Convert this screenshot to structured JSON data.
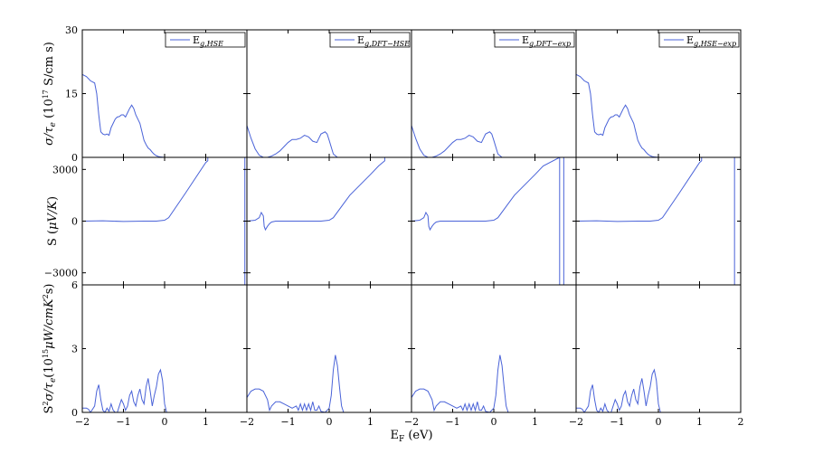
{
  "xlabel": "E_F (eV)",
  "chart_data": {
    "type": "line",
    "layout": "grid 3 rows x 4 columns, shared x axis",
    "xlim": [
      -2,
      2
    ],
    "xticks": [
      -2,
      -1,
      0,
      1,
      2
    ],
    "colors": {
      "line": "#4a63d8",
      "axes": "#000000"
    },
    "columns": [
      {
        "legend": "E_g,HSE",
        "legend_main": "E",
        "legend_sub": "g,HSE",
        "legend_position": "top-right"
      },
      {
        "legend": "E_g,DFT-HSE",
        "legend_main": "E",
        "legend_sub": "g,DFT−HSE",
        "legend_position": "top-right"
      },
      {
        "legend": "E_g,DFT-exp",
        "legend_main": "E",
        "legend_sub": "g,DFT−exp",
        "legend_position": "top-right"
      },
      {
        "legend": "E_g,HSE-exp",
        "legend_main": "E",
        "legend_sub": "g,HSE−exp",
        "legend_position": "top-right"
      }
    ],
    "rows": [
      {
        "ylabel": "σ/τ_e (10^17 S/cm s)",
        "ylim": [
          0,
          30
        ],
        "yticks": [
          0,
          15,
          30
        ],
        "series": [
          {
            "x": [
              -2,
              -1.9,
              -1.8,
              -1.7,
              -1.65,
              -1.6,
              -1.55,
              -1.5,
              -1.45,
              -1.4,
              -1.35,
              -1.3,
              -1.25,
              -1.2,
              -1.15,
              -1.1,
              -1.05,
              -1.0,
              -0.95,
              -0.9,
              -0.85,
              -0.8,
              -0.75,
              -0.7,
              -0.65,
              -0.6,
              -0.55,
              -0.5,
              -0.45,
              -0.4,
              -0.35,
              -0.3,
              -0.25,
              -0.2,
              -0.15,
              -0.1,
              -0.05,
              0,
              0.05,
              0.1,
              1.0,
              1.5,
              2.0
            ],
            "y": [
              19.5,
              19,
              18,
              17.5,
              15,
              10,
              6,
              5.5,
              5.3,
              5.5,
              5.2,
              7,
              8,
              9,
              9.5,
              9.6,
              10,
              10,
              9.5,
              10.5,
              11.5,
              12.3,
              11.5,
              10,
              9,
              8,
              6,
              4,
              3,
              2.2,
              1.8,
              1.2,
              0.7,
              0.4,
              0.2,
              0.1,
              0.05,
              0,
              0,
              0,
              0,
              0,
              0
            ]
          },
          {
            "x": [
              -2,
              -1.9,
              -1.8,
              -1.7,
              -1.6,
              -1.5,
              -1.4,
              -1.3,
              -1.2,
              -1.1,
              -1.0,
              -0.9,
              -0.8,
              -0.7,
              -0.6,
              -0.5,
              -0.4,
              -0.3,
              -0.2,
              -0.1,
              -0.05,
              0,
              0.1,
              0.2,
              1.0,
              1.5,
              2.0
            ],
            "y": [
              7.5,
              4.5,
              2,
              0.5,
              0,
              0,
              0.3,
              0.8,
              1.5,
              2.5,
              3.5,
              4.2,
              4.2,
              4.5,
              5.2,
              4.8,
              3.8,
              3.5,
              5.5,
              6,
              5.5,
              4,
              0.8,
              0,
              0,
              0,
              0
            ]
          },
          {
            "x": [
              -2,
              -1.9,
              -1.8,
              -1.7,
              -1.6,
              -1.5,
              -1.4,
              -1.3,
              -1.2,
              -1.1,
              -1.0,
              -0.9,
              -0.8,
              -0.7,
              -0.6,
              -0.5,
              -0.4,
              -0.3,
              -0.2,
              -0.1,
              -0.05,
              0,
              0.1,
              0.2,
              1.0,
              1.5,
              2.0
            ],
            "y": [
              7.5,
              4.5,
              2,
              0.5,
              0,
              0,
              0.3,
              0.8,
              1.5,
              2.5,
              3.5,
              4.2,
              4.2,
              4.5,
              5.2,
              4.8,
              3.8,
              3.5,
              5.5,
              6,
              5.5,
              4,
              0.8,
              0,
              0,
              0,
              0
            ]
          },
          {
            "x": [
              -2,
              -1.9,
              -1.8,
              -1.7,
              -1.65,
              -1.6,
              -1.55,
              -1.5,
              -1.45,
              -1.4,
              -1.35,
              -1.3,
              -1.25,
              -1.2,
              -1.15,
              -1.1,
              -1.05,
              -1.0,
              -0.95,
              -0.9,
              -0.85,
              -0.8,
              -0.75,
              -0.7,
              -0.65,
              -0.6,
              -0.55,
              -0.5,
              -0.45,
              -0.4,
              -0.35,
              -0.3,
              -0.25,
              -0.2,
              -0.15,
              -0.1,
              -0.05,
              0,
              0.05,
              0.1,
              1.0,
              1.5,
              2.0
            ],
            "y": [
              19.5,
              19,
              18,
              17.5,
              15,
              10,
              6,
              5.5,
              5.3,
              5.5,
              5.2,
              7,
              8,
              9,
              9.5,
              9.6,
              10,
              10,
              9.5,
              10.5,
              11.5,
              12.3,
              11.5,
              10,
              9,
              8,
              6,
              4,
              3,
              2.2,
              1.8,
              1.2,
              0.7,
              0.4,
              0.2,
              0.1,
              0.05,
              0,
              0,
              0,
              0,
              0,
              0
            ]
          }
        ]
      },
      {
        "ylabel": "S (μV/K)",
        "ylim": [
          -3700,
          3700
        ],
        "yticks": [
          -3000,
          0,
          3000
        ],
        "series": [
          {
            "x": [
              -2,
              -1.5,
              -1.0,
              -0.5,
              -0.2,
              0,
              0.1,
              0.5,
              1.0,
              1.05,
              1.05,
              1.95,
              1.95
            ],
            "y": [
              0,
              20,
              -20,
              0,
              0,
              50,
              200,
              1600,
              3400,
              3500,
              3700,
              3700,
              -3700
            ]
          },
          {
            "x": [
              -2,
              -1.8,
              -1.7,
              -1.65,
              -1.6,
              -1.58,
              -1.55,
              -1.5,
              -1.45,
              -1.4,
              -1.3,
              -1.2,
              -1.0,
              -0.8,
              -0.6,
              -0.4,
              -0.2,
              0,
              0.1,
              0.5,
              1.0,
              1.2,
              1.35,
              1.35,
              2.0
            ],
            "y": [
              0,
              50,
              200,
              500,
              300,
              -300,
              -500,
              -300,
              -150,
              -50,
              0,
              0,
              0,
              0,
              0,
              0,
              0,
              50,
              200,
              1500,
              2700,
              3200,
              3500,
              3700,
              3700
            ]
          },
          {
            "x": [
              -2,
              -1.8,
              -1.7,
              -1.65,
              -1.6,
              -1.58,
              -1.55,
              -1.5,
              -1.45,
              -1.4,
              -1.3,
              -1.2,
              -1.0,
              -0.8,
              -0.6,
              -0.4,
              -0.2,
              0,
              0.1,
              0.5,
              1.0,
              1.2,
              1.6,
              1.6,
              1.7,
              1.7
            ],
            "y": [
              0,
              50,
              200,
              500,
              300,
              -300,
              -500,
              -300,
              -150,
              -50,
              0,
              0,
              0,
              0,
              0,
              0,
              0,
              50,
              200,
              1500,
              2700,
              3200,
              3700,
              -3700,
              -3700,
              3700
            ]
          },
          {
            "x": [
              -2,
              -1.5,
              -1.0,
              -0.5,
              -0.2,
              0,
              0.1,
              0.5,
              1.0,
              1.05,
              1.05,
              1.85,
              1.85
            ],
            "y": [
              0,
              20,
              -20,
              0,
              0,
              50,
              200,
              1600,
              3400,
              3500,
              3700,
              3700,
              -3700
            ]
          }
        ]
      },
      {
        "ylabel": "S^2σ/τ_e (10^15 μW/cmK^2 s)",
        "ylim": [
          0,
          6
        ],
        "yticks": [
          0,
          3,
          6
        ],
        "series": [
          {
            "x": [
              -2,
              -1.9,
              -1.85,
              -1.8,
              -1.7,
              -1.65,
              -1.6,
              -1.55,
              -1.5,
              -1.45,
              -1.4,
              -1.35,
              -1.3,
              -1.25,
              -1.2,
              -1.15,
              -1.1,
              -1.05,
              -1.0,
              -0.95,
              -0.9,
              -0.85,
              -0.8,
              -0.75,
              -0.7,
              -0.65,
              -0.6,
              -0.55,
              -0.5,
              -0.45,
              -0.4,
              -0.35,
              -0.3,
              -0.25,
              -0.2,
              -0.15,
              -0.1,
              -0.05,
              0,
              0.05,
              0.1,
              1.0,
              1.5,
              2.0
            ],
            "y": [
              0.2,
              0.2,
              0.15,
              0,
              0.3,
              1.0,
              1.3,
              0.6,
              0.1,
              0,
              0.2,
              0.05,
              0.4,
              0.1,
              0,
              0,
              0.3,
              0.6,
              0.4,
              0.1,
              0.3,
              0.8,
              1.0,
              0.5,
              0.3,
              0.8,
              1.1,
              0.6,
              0.4,
              1.2,
              1.6,
              1.0,
              0.3,
              0.8,
              1.2,
              1.8,
              2.0,
              1.5,
              0.4,
              0,
              0,
              0,
              0,
              0
            ]
          },
          {
            "x": [
              -2,
              -1.9,
              -1.8,
              -1.7,
              -1.6,
              -1.5,
              -1.45,
              -1.4,
              -1.3,
              -1.2,
              -1.1,
              -1.0,
              -0.9,
              -0.8,
              -0.75,
              -0.7,
              -0.65,
              -0.6,
              -0.55,
              -0.5,
              -0.45,
              -0.4,
              -0.35,
              -0.3,
              -0.25,
              -0.2,
              -0.1,
              0,
              0.05,
              0.1,
              0.15,
              0.2,
              0.25,
              0.3,
              0.35,
              0.4,
              1.0,
              2.0
            ],
            "y": [
              0.7,
              1.0,
              1.1,
              1.1,
              1.0,
              0.6,
              0.1,
              0.3,
              0.5,
              0.5,
              0.4,
              0.3,
              0.2,
              0.3,
              0.1,
              0.4,
              0.1,
              0.4,
              0.1,
              0.4,
              0.1,
              0.5,
              0.1,
              0.1,
              0.3,
              0.05,
              0,
              0.2,
              0.8,
              2.0,
              2.7,
              2.2,
              1.2,
              0.3,
              0,
              0,
              0,
              0
            ]
          },
          {
            "x": [
              -2,
              -1.9,
              -1.8,
              -1.7,
              -1.6,
              -1.5,
              -1.45,
              -1.4,
              -1.3,
              -1.2,
              -1.1,
              -1.0,
              -0.9,
              -0.8,
              -0.75,
              -0.7,
              -0.65,
              -0.6,
              -0.55,
              -0.5,
              -0.45,
              -0.4,
              -0.35,
              -0.3,
              -0.25,
              -0.2,
              -0.1,
              0,
              0.05,
              0.1,
              0.15,
              0.2,
              0.25,
              0.3,
              0.35,
              0.4,
              1.0,
              2.0
            ],
            "y": [
              0.7,
              1.0,
              1.1,
              1.1,
              1.0,
              0.6,
              0.1,
              0.3,
              0.5,
              0.5,
              0.4,
              0.3,
              0.2,
              0.3,
              0.1,
              0.4,
              0.1,
              0.4,
              0.1,
              0.4,
              0.1,
              0.5,
              0.1,
              0.1,
              0.3,
              0.05,
              0,
              0.2,
              0.8,
              2.0,
              2.7,
              2.2,
              1.2,
              0.3,
              0,
              0,
              0,
              0
            ]
          },
          {
            "x": [
              -2,
              -1.9,
              -1.85,
              -1.8,
              -1.7,
              -1.65,
              -1.6,
              -1.55,
              -1.5,
              -1.45,
              -1.4,
              -1.35,
              -1.3,
              -1.25,
              -1.2,
              -1.15,
              -1.1,
              -1.05,
              -1.0,
              -0.95,
              -0.9,
              -0.85,
              -0.8,
              -0.75,
              -0.7,
              -0.65,
              -0.6,
              -0.55,
              -0.5,
              -0.45,
              -0.4,
              -0.35,
              -0.3,
              -0.25,
              -0.2,
              -0.15,
              -0.1,
              -0.05,
              0,
              0.05,
              0.1,
              1.0,
              1.5,
              2.0
            ],
            "y": [
              0.2,
              0.2,
              0.15,
              0,
              0.3,
              1.0,
              1.3,
              0.6,
              0.1,
              0,
              0.2,
              0.05,
              0.4,
              0.1,
              0,
              0,
              0.3,
              0.6,
              0.4,
              0.1,
              0.3,
              0.8,
              1.0,
              0.5,
              0.3,
              0.8,
              1.1,
              0.6,
              0.4,
              1.2,
              1.6,
              1.0,
              0.3,
              0.8,
              1.2,
              1.8,
              2.0,
              1.5,
              0.4,
              0,
              0,
              0,
              0,
              0
            ]
          }
        ]
      }
    ]
  }
}
